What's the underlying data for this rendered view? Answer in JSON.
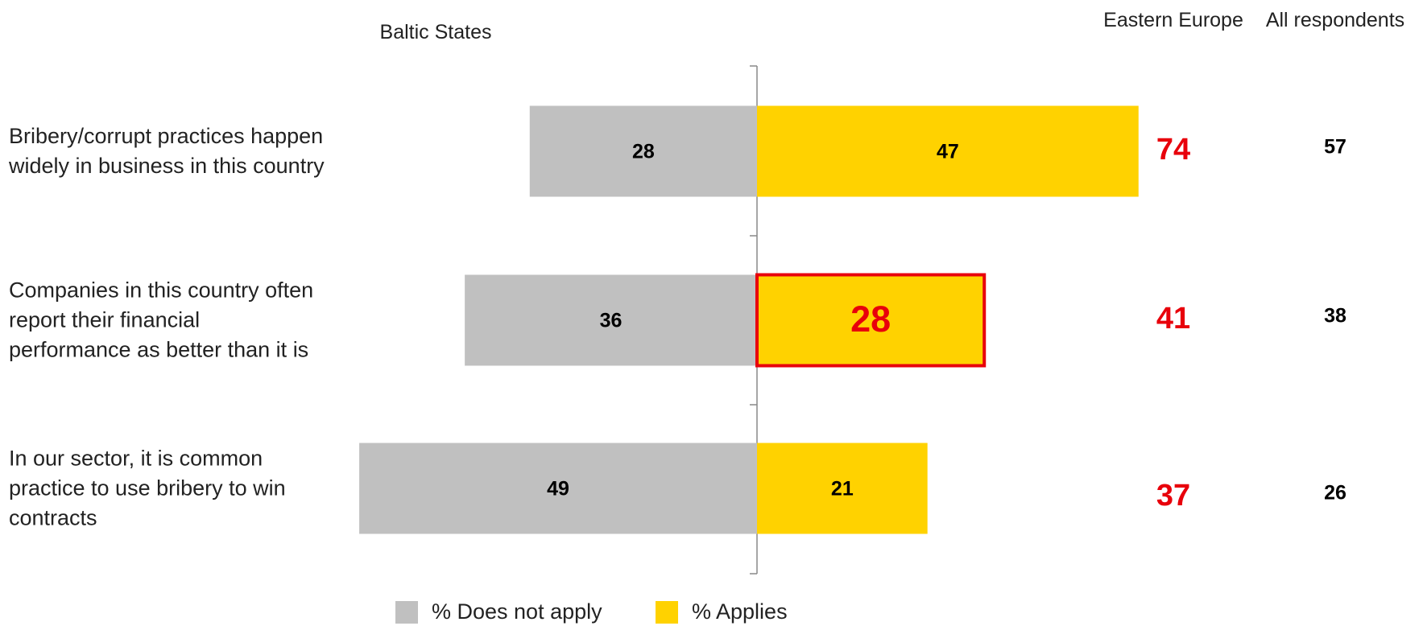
{
  "chart_data": {
    "type": "diverging_bar",
    "subtitle": "Baltic States",
    "categories": [
      "Bribery/corrupt practices happen widely in business in this country",
      "Companies in this country often report their financial performance as better than it is",
      "In our sector, it is common practice to use bribery to win contracts"
    ],
    "series": [
      {
        "name": "% Does not apply",
        "color": "#c0c0c0",
        "values": [
          28,
          36,
          49
        ]
      },
      {
        "name": "% Applies",
        "color": "#ffd200",
        "values": [
          47,
          28,
          21
        ]
      }
    ],
    "highlight": {
      "series": 1,
      "index": 1,
      "color": "#e8000b"
    },
    "columns": [
      {
        "name": "Eastern Europe",
        "color": "#e8000b",
        "values": [
          74,
          41,
          37
        ]
      },
      {
        "name": "All respondents",
        "color": "#000000",
        "values": [
          57,
          38,
          26
        ]
      }
    ]
  }
}
